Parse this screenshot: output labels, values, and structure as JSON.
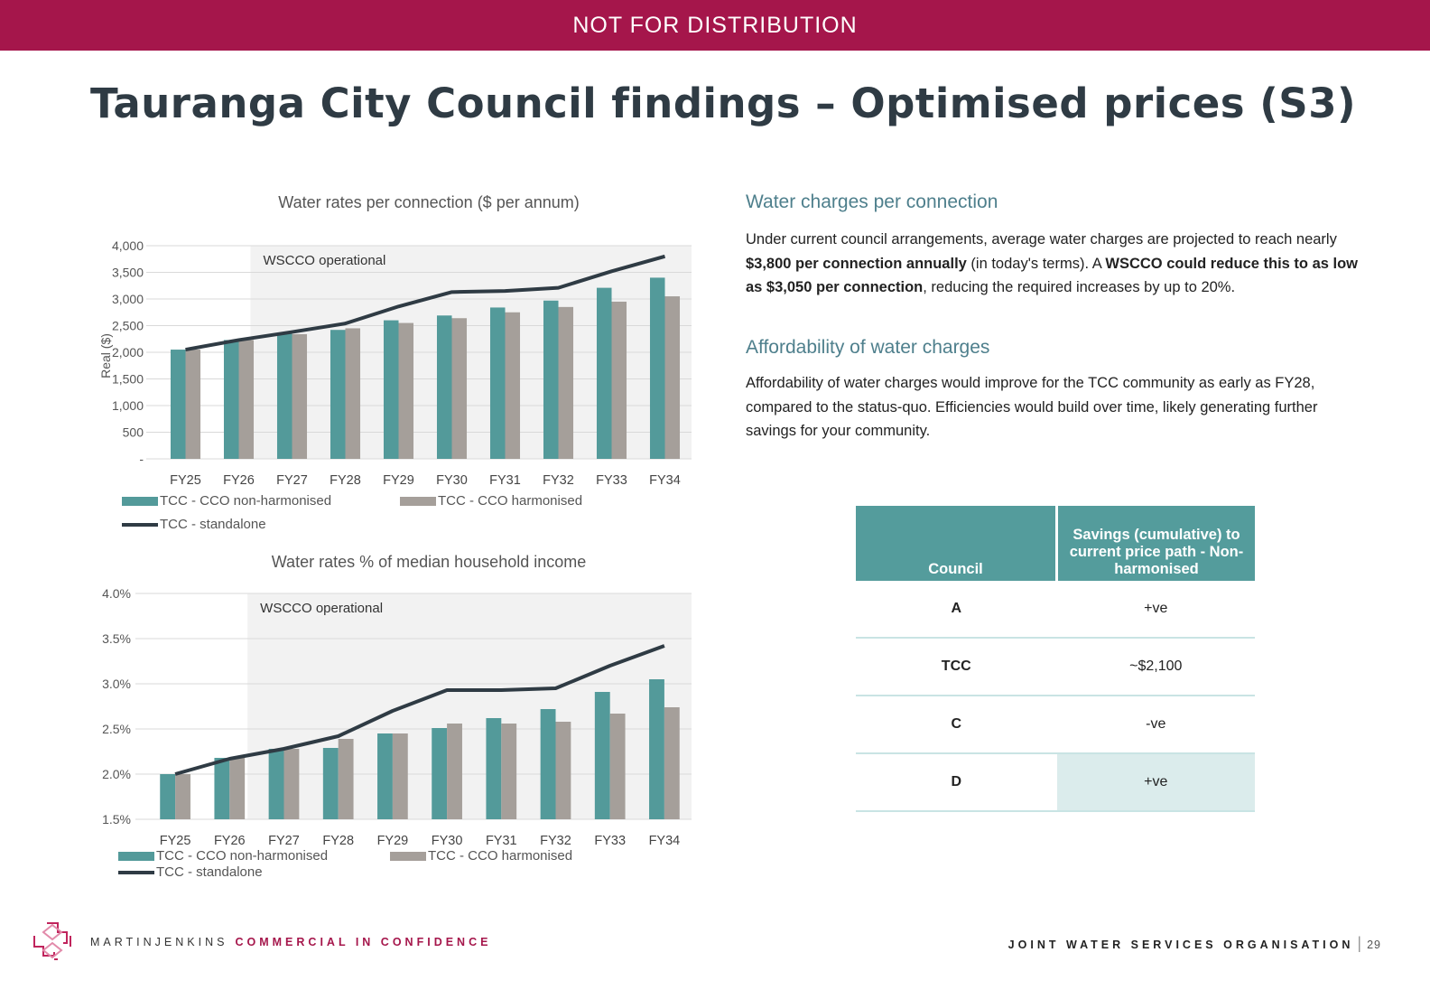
{
  "banner": "NOT FOR DISTRIBUTION",
  "title": "Tauranga City Council findings – Optimised prices (S3)",
  "chart_data": [
    {
      "type": "bar",
      "title": "Water rates per connection ($ per annum)",
      "xlabel": "",
      "ylabel": "Real ($)",
      "categories": [
        "FY25",
        "FY26",
        "FY27",
        "FY28",
        "FY29",
        "FY30",
        "FY31",
        "FY32",
        "FY33",
        "FY34"
      ],
      "y_tick_labels": [
        "-",
        "500",
        "1,000",
        "1,500",
        "2,000",
        "2,500",
        "3,000",
        "3,500",
        "4,000"
      ],
      "ylim": [
        0,
        4000
      ],
      "shaded_region_label": "WSCCO operational",
      "series": [
        {
          "name": "TCC - CCO non-harmonised",
          "type": "bar",
          "color": "#539a9a",
          "values": [
            2050,
            2230,
            2370,
            2420,
            2600,
            2690,
            2840,
            2970,
            3210,
            3400
          ]
        },
        {
          "name": "TCC - CCO harmonised",
          "type": "bar",
          "color": "#a59f9a",
          "values": [
            2050,
            2230,
            2340,
            2450,
            2550,
            2640,
            2750,
            2850,
            2950,
            3050
          ]
        },
        {
          "name": "TCC - standalone",
          "type": "line",
          "color": "#2f3b44",
          "values": [
            2050,
            2230,
            2380,
            2540,
            2860,
            3130,
            3150,
            3210,
            3520,
            3800
          ]
        }
      ],
      "legend_position": "bottom"
    },
    {
      "type": "bar",
      "title": "Water rates % of median household income",
      "xlabel": "",
      "ylabel": "",
      "categories": [
        "FY25",
        "FY26",
        "FY27",
        "FY28",
        "FY29",
        "FY30",
        "FY31",
        "FY32",
        "FY33",
        "FY34"
      ],
      "y_tick_labels": [
        "1.5%",
        "2.0%",
        "2.5%",
        "3.0%",
        "3.5%",
        "4.0%"
      ],
      "ylim": [
        1.5,
        4.0
      ],
      "shaded_region_label": "WSCCO operational",
      "series": [
        {
          "name": "TCC - CCO non-harmonised",
          "type": "bar",
          "color": "#539a9a",
          "values": [
            2.0,
            2.18,
            2.28,
            2.29,
            2.45,
            2.51,
            2.62,
            2.72,
            2.91,
            3.05
          ]
        },
        {
          "name": "TCC - CCO harmonised",
          "type": "bar",
          "color": "#a59f9a",
          "values": [
            2.0,
            2.18,
            2.28,
            2.39,
            2.45,
            2.56,
            2.56,
            2.58,
            2.67,
            2.74
          ]
        },
        {
          "name": "TCC - standalone",
          "type": "line",
          "color": "#2f3b44",
          "values": [
            2.0,
            2.17,
            2.28,
            2.42,
            2.7,
            2.93,
            2.93,
            2.95,
            3.2,
            3.42
          ]
        }
      ],
      "legend_position": "bottom"
    }
  ],
  "sections": {
    "charges_heading": "Water charges per connection",
    "charges_p1": "Under current council arrangements, average water charges are projected to reach nearly ",
    "charges_b1": "$3,800 per connection annually",
    "charges_p2": " (in today's terms). A ",
    "charges_b2": "WSCCO could reduce this to as low as $3,050 per connection",
    "charges_p3": ", reducing the required increases by up to 20%.",
    "afford_heading": "Affordability of water charges",
    "afford_text": "Affordability of water charges would improve for the TCC community as early as FY28, compared to the status-quo. Efficiencies would build over time, likely generating further savings for your community."
  },
  "table": {
    "headers": [
      "Council",
      "Savings (cumulative) to current price path - Non-harmonised"
    ],
    "rows": [
      {
        "council": "A",
        "savings": "+ve"
      },
      {
        "council": "TCC",
        "savings": "~$2,100"
      },
      {
        "council": "C",
        "savings": "-ve"
      },
      {
        "council": "D",
        "savings": "+ve"
      }
    ]
  },
  "footer": {
    "brand": "MARTINJENKINS",
    "confidential": "COMMERCIAL IN CONFIDENCE",
    "org": "JOINT WATER SERVICES ORGANISATION",
    "page": "29"
  },
  "colors": {
    "banner": "#a5164b",
    "teal": "#539a9a",
    "grey": "#a59f9a",
    "line": "#2f3b44",
    "shade": "#f2f2f2"
  }
}
